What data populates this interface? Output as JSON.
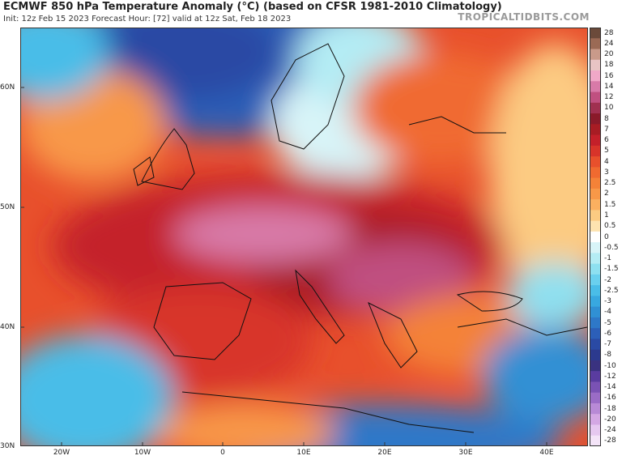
{
  "header": {
    "title": "ECMWF 850 hPa Temperature Anomaly (°C) (based on CFSR 1981-2010 Climatology)",
    "subtitle": "Init: 12z Feb 15 2023   Forecast Hour: [72]   valid at 12z Sat, Feb 18 2023",
    "brand": "TROPICALTIDBITS.COM"
  },
  "map": {
    "lat_labels": [
      "60N",
      "50N",
      "40N",
      "30N"
    ],
    "lon_labels": [
      "20W",
      "10W",
      "0",
      "10E",
      "20E",
      "30E",
      "40E"
    ],
    "lat_values": [
      60,
      50,
      40,
      30
    ],
    "lon_values": [
      -20,
      -10,
      0,
      10,
      20,
      30,
      40
    ],
    "lon_range": [
      -27,
      45
    ],
    "lat_range": [
      30,
      65
    ]
  },
  "colorbar": {
    "labels": [
      "28",
      "24",
      "20",
      "18",
      "16",
      "14",
      "12",
      "10",
      "8",
      "7",
      "6",
      "5",
      "4",
      "3",
      "2.5",
      "2",
      "1.5",
      "1",
      "0.5",
      "0",
      "-0.5",
      "-1",
      "-1.5",
      "-2",
      "-2.5",
      "-3",
      "-4",
      "-5",
      "-6",
      "-7",
      "-8",
      "-10",
      "-12",
      "-14",
      "-16",
      "-18",
      "-20",
      "-24",
      "-28"
    ],
    "colors": [
      "#6b4a3a",
      "#9b6a55",
      "#c99a8a",
      "#e8c4c4",
      "#f0a8c8",
      "#d87aa8",
      "#c05080",
      "#a03050",
      "#8a1a2a",
      "#a81c24",
      "#c4202a",
      "#d8342a",
      "#e8502c",
      "#f06a30",
      "#f48238",
      "#f89848",
      "#fab060",
      "#fccb82",
      "#fde3b0",
      "#ffffff",
      "#d8f4f8",
      "#b4ecf4",
      "#8ee0f0",
      "#6ad0ee",
      "#4abde8",
      "#38a8e0",
      "#3090d4",
      "#2e78c8",
      "#2c5fb8",
      "#2a4aa4",
      "#2c3a8e",
      "#3a3280",
      "#5a3ca0",
      "#7a52b4",
      "#9a6cc6",
      "#b88ad6",
      "#d4a8e4",
      "#e6c8f0",
      "#f4e4f8"
    ]
  }
}
